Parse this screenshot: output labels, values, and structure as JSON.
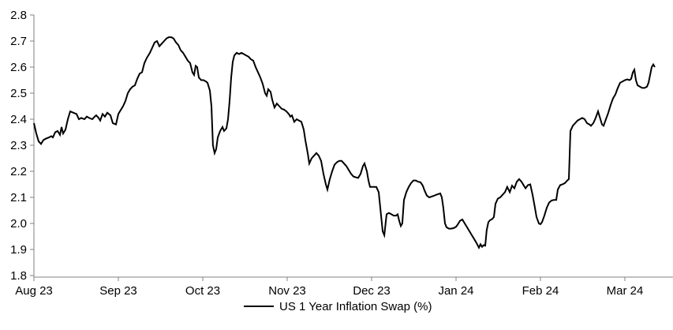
{
  "chart_data": {
    "type": "line",
    "legend": {
      "label": "US 1 Year Inflation Swap (%)",
      "marker_color": "#000000",
      "position": "bottom-center"
    },
    "x_axis": {
      "tick_labels": [
        "Aug 23",
        "Sep 23",
        "Oct 23",
        "Nov 23",
        "Dec 23",
        "Jan 24",
        "Feb 24",
        "Mar 24"
      ],
      "unit": "months_since_first_tick",
      "grid": false
    },
    "y_axis": {
      "min": 1.8,
      "max": 2.8,
      "step": 0.1,
      "tick_labels": [
        "1.8",
        "1.9",
        "2.0",
        "2.1",
        "2.2",
        "2.3",
        "2.4",
        "2.5",
        "2.6",
        "2.7",
        "2.8"
      ],
      "grid": false
    },
    "axis_color": "#808080",
    "text_color": "#000000",
    "series": [
      {
        "name": "US 1 Year Inflation Swap (%)",
        "color": "#000000",
        "points": [
          [
            0.0,
            2.385
          ],
          [
            0.028,
            2.345
          ],
          [
            0.056,
            2.315
          ],
          [
            0.084,
            2.305
          ],
          [
            0.112,
            2.32
          ],
          [
            0.14,
            2.325
          ],
          [
            0.178,
            2.33
          ],
          [
            0.206,
            2.335
          ],
          [
            0.224,
            2.33
          ],
          [
            0.252,
            2.35
          ],
          [
            0.28,
            2.355
          ],
          [
            0.308,
            2.34
          ],
          [
            0.327,
            2.37
          ],
          [
            0.346,
            2.345
          ],
          [
            0.374,
            2.36
          ],
          [
            0.402,
            2.4
          ],
          [
            0.43,
            2.43
          ],
          [
            0.467,
            2.425
          ],
          [
            0.505,
            2.42
          ],
          [
            0.533,
            2.4
          ],
          [
            0.561,
            2.405
          ],
          [
            0.598,
            2.4
          ],
          [
            0.626,
            2.41
          ],
          [
            0.654,
            2.405
          ],
          [
            0.692,
            2.4
          ],
          [
            0.72,
            2.41
          ],
          [
            0.738,
            2.415
          ],
          [
            0.766,
            2.405
          ],
          [
            0.785,
            2.395
          ],
          [
            0.813,
            2.42
          ],
          [
            0.841,
            2.41
          ],
          [
            0.869,
            2.425
          ],
          [
            0.907,
            2.415
          ],
          [
            0.935,
            2.385
          ],
          [
            0.972,
            2.38
          ],
          [
            1.0,
            2.42
          ],
          [
            1.028,
            2.435
          ],
          [
            1.056,
            2.45
          ],
          [
            1.084,
            2.47
          ],
          [
            1.112,
            2.5
          ],
          [
            1.14,
            2.515
          ],
          [
            1.168,
            2.525
          ],
          [
            1.196,
            2.53
          ],
          [
            1.224,
            2.555
          ],
          [
            1.252,
            2.575
          ],
          [
            1.28,
            2.58
          ],
          [
            1.308,
            2.615
          ],
          [
            1.336,
            2.635
          ],
          [
            1.374,
            2.655
          ],
          [
            1.402,
            2.675
          ],
          [
            1.43,
            2.695
          ],
          [
            1.458,
            2.7
          ],
          [
            1.486,
            2.68
          ],
          [
            1.514,
            2.69
          ],
          [
            1.542,
            2.7
          ],
          [
            1.57,
            2.71
          ],
          [
            1.598,
            2.715
          ],
          [
            1.626,
            2.715
          ],
          [
            1.654,
            2.71
          ],
          [
            1.682,
            2.695
          ],
          [
            1.71,
            2.685
          ],
          [
            1.738,
            2.665
          ],
          [
            1.766,
            2.655
          ],
          [
            1.794,
            2.64
          ],
          [
            1.822,
            2.625
          ],
          [
            1.85,
            2.615
          ],
          [
            1.878,
            2.58
          ],
          [
            1.897,
            2.57
          ],
          [
            1.916,
            2.605
          ],
          [
            1.934,
            2.6
          ],
          [
            1.953,
            2.56
          ],
          [
            1.981,
            2.55
          ],
          [
            2.009,
            2.55
          ],
          [
            2.037,
            2.545
          ],
          [
            2.056,
            2.54
          ],
          [
            2.084,
            2.51
          ],
          [
            2.103,
            2.45
          ],
          [
            2.121,
            2.3
          ],
          [
            2.14,
            2.27
          ],
          [
            2.159,
            2.285
          ],
          [
            2.178,
            2.33
          ],
          [
            2.206,
            2.355
          ],
          [
            2.234,
            2.37
          ],
          [
            2.252,
            2.355
          ],
          [
            2.28,
            2.365
          ],
          [
            2.299,
            2.4
          ],
          [
            2.318,
            2.47
          ],
          [
            2.336,
            2.56
          ],
          [
            2.355,
            2.62
          ],
          [
            2.374,
            2.645
          ],
          [
            2.402,
            2.655
          ],
          [
            2.43,
            2.65
          ],
          [
            2.458,
            2.655
          ],
          [
            2.486,
            2.65
          ],
          [
            2.514,
            2.645
          ],
          [
            2.542,
            2.64
          ],
          [
            2.57,
            2.63
          ],
          [
            2.598,
            2.625
          ],
          [
            2.626,
            2.6
          ],
          [
            2.654,
            2.58
          ],
          [
            2.682,
            2.56
          ],
          [
            2.71,
            2.535
          ],
          [
            2.738,
            2.5
          ],
          [
            2.757,
            2.49
          ],
          [
            2.776,
            2.515
          ],
          [
            2.804,
            2.505
          ],
          [
            2.822,
            2.475
          ],
          [
            2.85,
            2.445
          ],
          [
            2.878,
            2.46
          ],
          [
            2.907,
            2.45
          ],
          [
            2.935,
            2.44
          ],
          [
            2.963,
            2.437
          ],
          [
            2.991,
            2.43
          ],
          [
            3.019,
            2.42
          ],
          [
            3.037,
            2.41
          ],
          [
            3.056,
            2.415
          ],
          [
            3.084,
            2.39
          ],
          [
            3.112,
            2.4
          ],
          [
            3.14,
            2.395
          ],
          [
            3.168,
            2.39
          ],
          [
            3.196,
            2.36
          ],
          [
            3.215,
            2.32
          ],
          [
            3.243,
            2.27
          ],
          [
            3.262,
            2.23
          ],
          [
            3.29,
            2.25
          ],
          [
            3.318,
            2.26
          ],
          [
            3.346,
            2.27
          ],
          [
            3.374,
            2.26
          ],
          [
            3.402,
            2.24
          ],
          [
            3.43,
            2.19
          ],
          [
            3.458,
            2.15
          ],
          [
            3.477,
            2.13
          ],
          [
            3.505,
            2.17
          ],
          [
            3.533,
            2.2
          ],
          [
            3.561,
            2.225
          ],
          [
            3.589,
            2.235
          ],
          [
            3.617,
            2.24
          ],
          [
            3.645,
            2.24
          ],
          [
            3.673,
            2.23
          ],
          [
            3.701,
            2.22
          ],
          [
            3.729,
            2.205
          ],
          [
            3.757,
            2.19
          ],
          [
            3.785,
            2.18
          ],
          [
            3.813,
            2.177
          ],
          [
            3.841,
            2.175
          ],
          [
            3.869,
            2.19
          ],
          [
            3.897,
            2.22
          ],
          [
            3.916,
            2.23
          ],
          [
            3.944,
            2.2
          ],
          [
            3.963,
            2.165
          ],
          [
            3.981,
            2.14
          ],
          [
            4.019,
            2.14
          ],
          [
            4.056,
            2.14
          ],
          [
            4.084,
            2.12
          ],
          [
            4.103,
            2.06
          ],
          [
            4.131,
            1.97
          ],
          [
            4.15,
            1.955
          ],
          [
            4.178,
            2.035
          ],
          [
            4.206,
            2.04
          ],
          [
            4.234,
            2.035
          ],
          [
            4.262,
            2.03
          ],
          [
            4.29,
            2.03
          ],
          [
            4.308,
            2.035
          ],
          [
            4.327,
            2.01
          ],
          [
            4.346,
            1.99
          ],
          [
            4.364,
            2.0
          ],
          [
            4.383,
            2.09
          ],
          [
            4.411,
            2.12
          ],
          [
            4.439,
            2.14
          ],
          [
            4.467,
            2.155
          ],
          [
            4.495,
            2.165
          ],
          [
            4.523,
            2.165
          ],
          [
            4.551,
            2.16
          ],
          [
            4.579,
            2.158
          ],
          [
            4.607,
            2.145
          ],
          [
            4.626,
            2.127
          ],
          [
            4.654,
            2.107
          ],
          [
            4.682,
            2.1
          ],
          [
            4.71,
            2.103
          ],
          [
            4.738,
            2.106
          ],
          [
            4.766,
            2.11
          ],
          [
            4.794,
            2.113
          ],
          [
            4.813,
            2.115
          ],
          [
            4.832,
            2.1
          ],
          [
            4.85,
            2.06
          ],
          [
            4.869,
            2.0
          ],
          [
            4.888,
            1.985
          ],
          [
            4.916,
            1.98
          ],
          [
            4.944,
            1.98
          ],
          [
            4.972,
            1.982
          ],
          [
            5.0,
            1.987
          ],
          [
            5.019,
            1.995
          ],
          [
            5.047,
            2.01
          ],
          [
            5.075,
            2.015
          ],
          [
            5.103,
            2.0
          ],
          [
            5.131,
            1.985
          ],
          [
            5.159,
            1.97
          ],
          [
            5.187,
            1.955
          ],
          [
            5.215,
            1.94
          ],
          [
            5.243,
            1.925
          ],
          [
            5.271,
            1.907
          ],
          [
            5.29,
            1.92
          ],
          [
            5.308,
            1.91
          ],
          [
            5.327,
            1.917
          ],
          [
            5.346,
            1.915
          ],
          [
            5.364,
            1.975
          ],
          [
            5.383,
            2.005
          ],
          [
            5.402,
            2.012
          ],
          [
            5.43,
            2.017
          ],
          [
            5.449,
            2.025
          ],
          [
            5.467,
            2.075
          ],
          [
            5.495,
            2.095
          ],
          [
            5.523,
            2.1
          ],
          [
            5.551,
            2.11
          ],
          [
            5.579,
            2.12
          ],
          [
            5.607,
            2.14
          ],
          [
            5.636,
            2.12
          ],
          [
            5.664,
            2.145
          ],
          [
            5.692,
            2.135
          ],
          [
            5.72,
            2.16
          ],
          [
            5.748,
            2.17
          ],
          [
            5.776,
            2.16
          ],
          [
            5.804,
            2.145
          ],
          [
            5.823,
            2.135
          ],
          [
            5.851,
            2.147
          ],
          [
            5.879,
            2.15
          ],
          [
            5.907,
            2.11
          ],
          [
            5.935,
            2.06
          ],
          [
            5.953,
            2.025
          ],
          [
            5.981,
            2.0
          ],
          [
            6.0,
            1.997
          ],
          [
            6.019,
            2.005
          ],
          [
            6.047,
            2.03
          ],
          [
            6.075,
            2.06
          ],
          [
            6.103,
            2.08
          ],
          [
            6.131,
            2.088
          ],
          [
            6.159,
            2.09
          ],
          [
            6.187,
            2.09
          ],
          [
            6.206,
            2.13
          ],
          [
            6.234,
            2.147
          ],
          [
            6.262,
            2.15
          ],
          [
            6.29,
            2.155
          ],
          [
            6.318,
            2.165
          ],
          [
            6.336,
            2.17
          ],
          [
            6.355,
            2.355
          ],
          [
            6.383,
            2.375
          ],
          [
            6.411,
            2.385
          ],
          [
            6.439,
            2.395
          ],
          [
            6.467,
            2.4
          ],
          [
            6.495,
            2.405
          ],
          [
            6.523,
            2.4
          ],
          [
            6.551,
            2.385
          ],
          [
            6.579,
            2.38
          ],
          [
            6.598,
            2.375
          ],
          [
            6.626,
            2.385
          ],
          [
            6.654,
            2.405
          ],
          [
            6.682,
            2.43
          ],
          [
            6.71,
            2.4
          ],
          [
            6.729,
            2.38
          ],
          [
            6.748,
            2.375
          ],
          [
            6.776,
            2.4
          ],
          [
            6.804,
            2.425
          ],
          [
            6.832,
            2.455
          ],
          [
            6.86,
            2.48
          ],
          [
            6.888,
            2.495
          ],
          [
            6.916,
            2.52
          ],
          [
            6.944,
            2.54
          ],
          [
            6.972,
            2.545
          ],
          [
            7.0,
            2.55
          ],
          [
            7.028,
            2.553
          ],
          [
            7.056,
            2.55
          ],
          [
            7.075,
            2.555
          ],
          [
            7.094,
            2.58
          ],
          [
            7.112,
            2.59
          ],
          [
            7.131,
            2.55
          ],
          [
            7.15,
            2.53
          ],
          [
            7.178,
            2.525
          ],
          [
            7.206,
            2.52
          ],
          [
            7.234,
            2.52
          ],
          [
            7.262,
            2.525
          ],
          [
            7.28,
            2.54
          ],
          [
            7.299,
            2.57
          ],
          [
            7.318,
            2.6
          ],
          [
            7.336,
            2.61
          ],
          [
            7.355,
            2.6
          ]
        ]
      }
    ]
  }
}
